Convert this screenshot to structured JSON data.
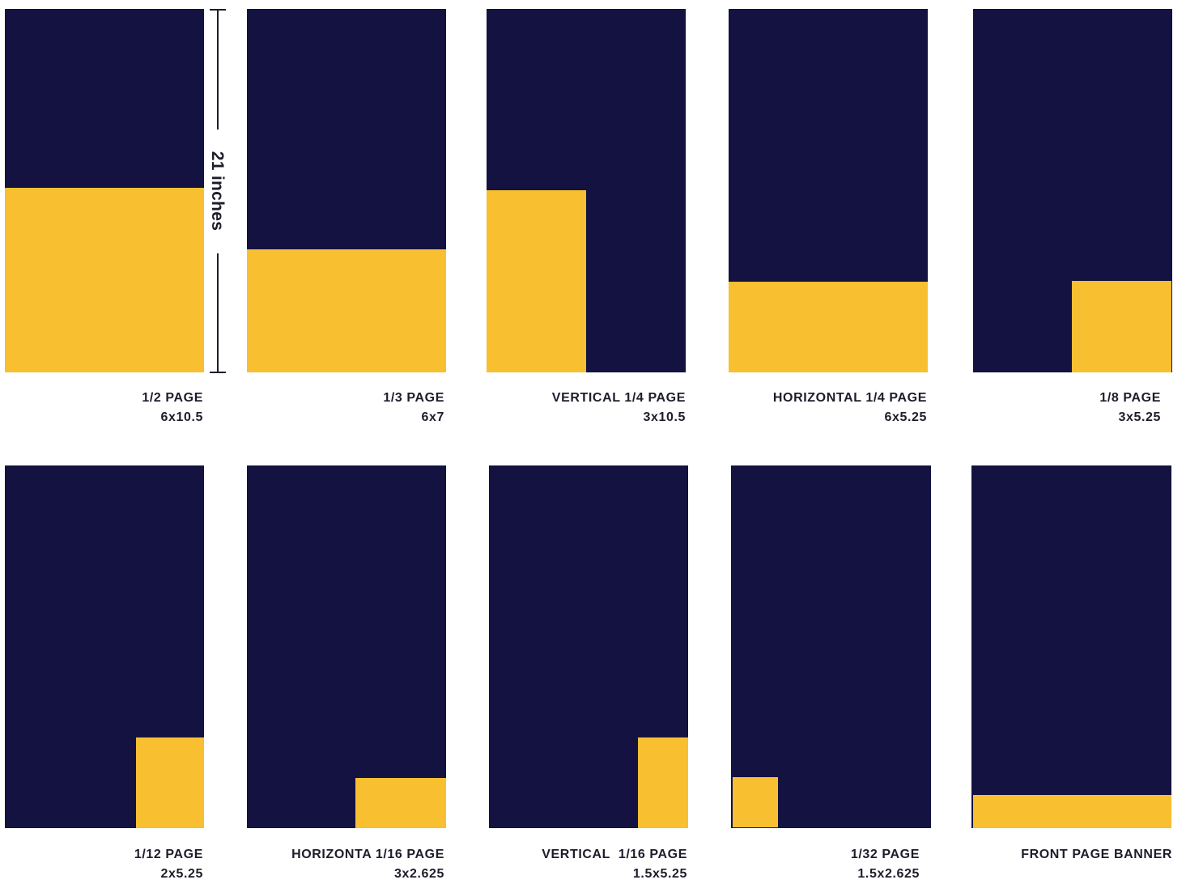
{
  "colors": {
    "page": "#141240",
    "ad": "#f8bf30",
    "text": "#1d1d2b"
  },
  "dimension": {
    "label": "21 inches"
  },
  "ads": [
    {
      "name": "1/2 PAGE",
      "size": "6x10.5"
    },
    {
      "name": "1/3 PAGE",
      "size": "6x7"
    },
    {
      "name": "VERTICAL 1/4 PAGE",
      "size": "3x10.5"
    },
    {
      "name": "HORIZONTAL 1/4 PAGE",
      "size": "6x5.25"
    },
    {
      "name": "1/8 PAGE",
      "size": "3x5.25"
    },
    {
      "name": "1/12 PAGE",
      "size": "2x5.25"
    },
    {
      "name": "HORIZONTA 1/16 PAGE",
      "size": "3x2.625"
    },
    {
      "name": "VERTICAL  1/16 PAGE",
      "size": "1.5x5.25"
    },
    {
      "name": "1/32 PAGE",
      "size": "1.5x2.625"
    },
    {
      "name": "FRONT PAGE BANNER",
      "size": ""
    }
  ]
}
